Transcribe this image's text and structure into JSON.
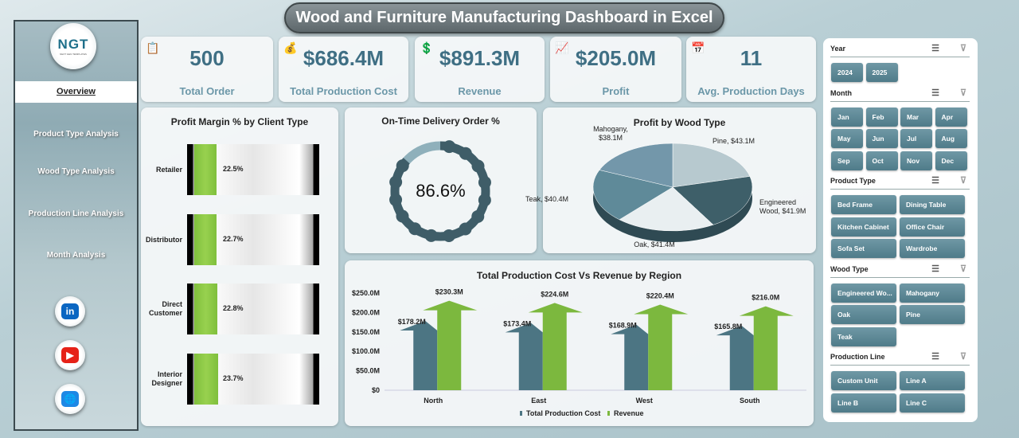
{
  "title": "Wood and Furniture Manufacturing Dashboard in Excel",
  "logo": {
    "text": "NGT",
    "tagline": "NEXT GEN TEMPLATES"
  },
  "nav": [
    {
      "label": "Overview",
      "active": true
    },
    {
      "label": "Product Type Analysis"
    },
    {
      "label": "Wood Type Analysis"
    },
    {
      "label": "Production Line Analysis"
    },
    {
      "label": "Month Analysis"
    }
  ],
  "social": [
    {
      "icon": "linkedin-icon",
      "label": "in",
      "color": "#0a66c2"
    },
    {
      "icon": "youtube-icon",
      "label": "▶",
      "color": "#e62117"
    },
    {
      "icon": "globe-icon",
      "label": "🌐",
      "color": "#1e88e5"
    }
  ],
  "kpis": [
    {
      "value": "500",
      "label": "Total Order",
      "icon": "clipboard-icon"
    },
    {
      "value": "$686.4M",
      "label": "Total Production Cost",
      "icon": "money-bag-icon"
    },
    {
      "value": "$891.3M",
      "label": "Revenue",
      "icon": "revenue-icon"
    },
    {
      "value": "$205.0M",
      "label": "Profit",
      "icon": "profit-icon"
    },
    {
      "value": "11",
      "label": "Avg. Production Days",
      "icon": "calendar-icon"
    }
  ],
  "profit_margin": {
    "title": "Profit Margin % by Client Type",
    "rows": [
      {
        "label": "Retailer",
        "value": 22.5,
        "text": "22.5%"
      },
      {
        "label": "Distributor",
        "value": 22.7,
        "text": "22.7%"
      },
      {
        "label": "Direct Customer",
        "value": 22.8,
        "text": "22.8%"
      },
      {
        "label": "Interior Designer",
        "value": 23.7,
        "text": "23.7%"
      }
    ]
  },
  "delivery": {
    "title": "On-Time Delivery Order %",
    "value": 86.6,
    "text": "86.6%"
  },
  "chart_data": [
    {
      "type": "pie",
      "title": "Profit by Wood Type",
      "slices": [
        {
          "label": "Pine",
          "value": 43.1,
          "text": "Pine, $43.1M",
          "color": "#b7c9cf"
        },
        {
          "label": "Engineered Wood",
          "value": 41.9,
          "text": "Engineered Wood, $41.9M",
          "color": "#3e5f69"
        },
        {
          "label": "Oak",
          "value": 41.4,
          "text": "Oak, $41.4M",
          "color": "#e9eff1"
        },
        {
          "label": "Teak",
          "value": 40.4,
          "text": "Teak, $40.4M",
          "color": "#5f8a99"
        },
        {
          "label": "Mahogany",
          "value": 38.1,
          "text": "Mahogany, $38.1M",
          "color": "#7397aa"
        }
      ]
    },
    {
      "type": "bar",
      "title": "Total Production Cost Vs Revenue by Region",
      "categories": [
        "North",
        "East",
        "West",
        "South"
      ],
      "series": [
        {
          "name": "Total Production Cost",
          "values": [
            178.2,
            173.4,
            168.9,
            165.8
          ],
          "labels": [
            "$178.2M",
            "$173.4M",
            "$168.9M",
            "$165.8M"
          ],
          "color": "#4c7583"
        },
        {
          "name": "Revenue",
          "values": [
            230.3,
            224.6,
            220.4,
            216.0
          ],
          "labels": [
            "$230.3M",
            "$224.6M",
            "$220.4M",
            "$216.0M"
          ],
          "color": "#7cb83e"
        }
      ],
      "ylim": [
        0,
        250
      ],
      "yticks": [
        "$0",
        "$50.0M",
        "$100.0M",
        "$150.0M",
        "$200.0M",
        "$250.0M"
      ],
      "legend": "bottom"
    }
  ],
  "slicers": [
    {
      "title": "Year",
      "items": [
        "2024",
        "2025"
      ],
      "cols": 4
    },
    {
      "title": "Month",
      "items": [
        "Jan",
        "Feb",
        "Mar",
        "Apr",
        "May",
        "Jun",
        "Jul",
        "Aug",
        "Sep",
        "Oct",
        "Nov",
        "Dec"
      ],
      "cols": 4
    },
    {
      "title": "Product Type",
      "items": [
        "Bed Frame",
        "Dining Table",
        "Kitchen Cabinet",
        "Office Chair",
        "Sofa Set",
        "Wardrobe"
      ],
      "cols": 2
    },
    {
      "title": "Wood Type",
      "items": [
        "Engineered Wo...",
        "Mahogany",
        "Oak",
        "Pine",
        "Teak"
      ],
      "cols": 2
    },
    {
      "title": "Production Line",
      "items": [
        "Custom Unit",
        "Line A",
        "Line B",
        "Line C"
      ],
      "cols": 2
    }
  ]
}
